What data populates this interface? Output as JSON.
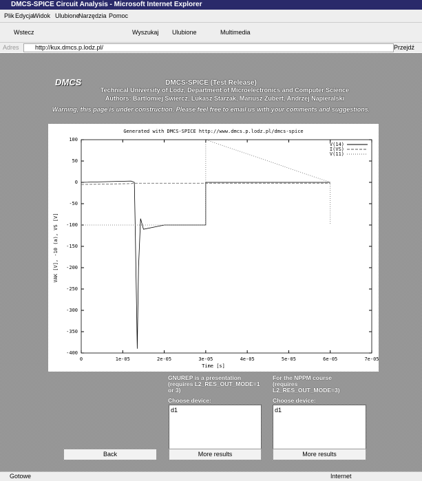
{
  "browser": {
    "title": "DMCS-SPICE Circuit Analysis - Microsoft Internet Explorer",
    "menu": [
      "Plik",
      "Edycja",
      "Widok",
      "Ulubione",
      "Narzędzia",
      "Pomoc"
    ],
    "toolbar": [
      "Wstecz",
      "Wyszukaj",
      "Ulubione",
      "Multimedia"
    ],
    "address": {
      "label": "Adres",
      "url": "http://kux.dmcs.p.lodz.pl/",
      "go": "Przejdź"
    },
    "status": {
      "text": "Gotowe",
      "zone": "Internet"
    }
  },
  "header": {
    "logo": "DMCS",
    "title": "DMCS-SPICE (Test Release)",
    "lines": [
      "Technical University of Lodz, Department of Microelectronics and Computer Science",
      "Authors: Bartlomiej Swiercz, Lukasz Starzak, Mariusz Zubert, Andrzej Napieralski"
    ],
    "warning": "Warning, this page is under construction. Please feel free to email us with your comments and suggestions."
  },
  "chart_data": {
    "type": "line",
    "title": "Generated with DMCS-SPICE http://www.dmcs.p.lodz.pl/dmcs-spice",
    "x_label": "Time [s]",
    "y_label": "VAK [V], -10 (a), VS [V]",
    "xlim": [
      0,
      7e-05
    ],
    "xticks": [
      0,
      {
        "value": 1e-05,
        "label": "1e-05"
      },
      {
        "value": 2e-05,
        "label": "2e-05"
      },
      {
        "value": 3e-05,
        "label": "3e-05"
      },
      {
        "value": 4e-05,
        "label": "4e-05"
      },
      {
        "value": 5e-05,
        "label": "5e-05"
      },
      {
        "value": 6e-05,
        "label": "6e-05"
      },
      {
        "value": 7e-05,
        "label": "7e-05"
      }
    ],
    "ylim": [
      -400,
      100
    ],
    "yticks": [
      100,
      50,
      0,
      -50,
      -100,
      -150,
      -200,
      -250,
      -300,
      -350,
      -400
    ],
    "legend": "top-right",
    "series": [
      {
        "name": "V(14)",
        "color": "#000000",
        "dash": "solid",
        "x": [
          0,
          1.2e-05,
          1.28e-05,
          1.3e-05,
          1.35e-05,
          1.38e-05,
          1.43e-05,
          1.5e-05,
          2e-05,
          3e-05,
          3e-05,
          6e-05
        ],
        "values": [
          0,
          3,
          0,
          -100,
          -390,
          -200,
          -85,
          -110,
          -100,
          -100,
          0,
          0
        ]
      },
      {
        "name": "I(VS)",
        "color": "#555555",
        "dash": "dashed",
        "x": [
          0,
          1.2e-05,
          1.3e-05,
          3e-05,
          6e-05
        ],
        "values": [
          -5,
          -3,
          -2,
          -2,
          -2
        ]
      },
      {
        "name": "V(11)",
        "color": "#666666",
        "dash": "dotted",
        "x": [
          0,
          3e-05,
          3e-05,
          6e-05,
          6e-05
        ],
        "values": [
          -100,
          -100,
          100,
          0,
          -100
        ]
      }
    ]
  },
  "back_button": "Back",
  "panels": [
    {
      "description": "GNUREP is a presentation (requires L2_RES_OUT_MODE=1 or 3)",
      "choose": "Choose device:",
      "options": [
        "d1"
      ],
      "button": "More results"
    },
    {
      "description": "For the NPPM course (requires L2_RES_OUT_MODE=3)",
      "choose": "Choose device:",
      "options": [
        "d1"
      ],
      "button": "More results"
    }
  ]
}
